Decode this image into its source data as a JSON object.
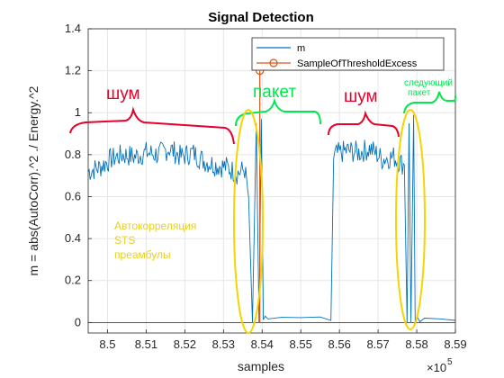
{
  "chart_data": {
    "type": "line",
    "title": "Signal Detection",
    "xlabel": "samples",
    "ylabel": "m = abs(AutoCorr).^2 ./ Energy.^2",
    "x_exponent_label": "×10",
    "x_exponent_power": "5",
    "xlim": [
      8.495,
      8.59
    ],
    "ylim": [
      -0.05,
      1.4
    ],
    "x_ticks": [
      8.5,
      8.51,
      8.52,
      8.53,
      8.54,
      8.55,
      8.56,
      8.57,
      8.58,
      8.59
    ],
    "x_tick_labels": [
      "8.5",
      "8.51",
      "8.52",
      "8.53",
      "8.54",
      "8.55",
      "8.56",
      "8.57",
      "8.58",
      "8.59"
    ],
    "y_ticks": [
      0,
      0.2,
      0.4,
      0.6,
      0.8,
      1,
      1.2,
      1.4
    ],
    "y_tick_labels": [
      "0",
      "0.2",
      "0.4",
      "0.6",
      "0.8",
      "1",
      "1.2",
      "1.4"
    ],
    "grid": true,
    "legend_position": "top-right",
    "series": [
      {
        "name": "m",
        "color": "#0072bd",
        "style": "line",
        "x": [
          8.495,
          8.498,
          8.501,
          8.504,
          8.507,
          8.51,
          8.513,
          8.516,
          8.519,
          8.522,
          8.525,
          8.528,
          8.531,
          8.5335,
          8.5355,
          8.5365,
          8.5375,
          8.5385,
          8.5392,
          8.5398,
          8.5403,
          8.5408,
          8.5415,
          8.545,
          8.55,
          8.555,
          8.5578,
          8.5585,
          8.559,
          8.562,
          8.565,
          8.568,
          8.571,
          8.574,
          8.576,
          8.5768,
          8.5775,
          8.578,
          8.5785,
          8.5792,
          8.5796,
          8.5802,
          8.5808,
          8.582,
          8.586,
          8.59
        ],
        "y": [
          0.72,
          0.74,
          0.78,
          0.8,
          0.79,
          0.81,
          0.8,
          0.83,
          0.79,
          0.81,
          0.77,
          0.75,
          0.74,
          0.71,
          0.73,
          0.6,
          0.0,
          0.95,
          0.0,
          0.97,
          0.0,
          0.02,
          0.01,
          0.01,
          0.01,
          0.02,
          0.01,
          0.78,
          0.8,
          0.82,
          0.81,
          0.83,
          0.78,
          0.79,
          0.76,
          0.75,
          0.0,
          0.95,
          0.0,
          0.99,
          0.0,
          0.02,
          0.0,
          0.01,
          0.01,
          0.01
        ]
      },
      {
        "name": "SampleOfThresholdExcess",
        "color": "#d95319",
        "style": "stem",
        "x": [
          8.5394
        ],
        "y": [
          1.2
        ]
      }
    ]
  },
  "annotations": {
    "noise_1": "шум",
    "packet": "пакет",
    "noise_2": "шум",
    "next_packet_line1": "следующий",
    "next_packet_line2": "пакет",
    "autocorr_line1": "Автокорреляция",
    "autocorr_line2": "STS",
    "autocorr_line3": "преамбулы"
  }
}
